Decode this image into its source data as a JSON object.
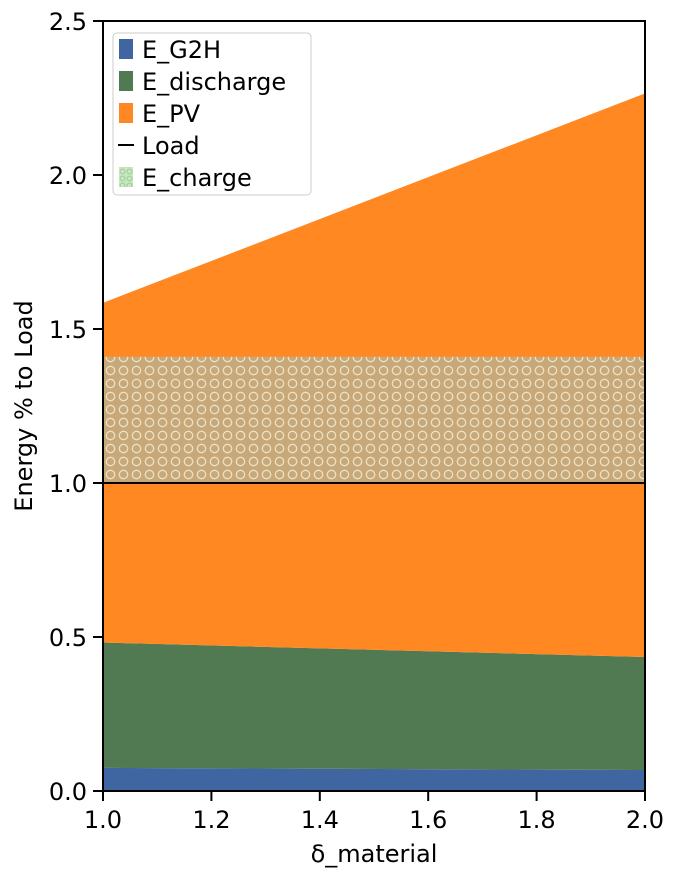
{
  "chart_data": {
    "type": "area",
    "title": "",
    "xlabel": "δ_material",
    "ylabel": "Energy % to Load",
    "xlim": [
      1.0,
      2.0
    ],
    "ylim": [
      0.0,
      2.5
    ],
    "xticks": [
      "1.0",
      "1.2",
      "1.4",
      "1.6",
      "1.8",
      "2.0"
    ],
    "yticks": [
      "0.0",
      "0.5",
      "1.0",
      "1.5",
      "2.0",
      "2.5"
    ],
    "grid": false,
    "legend_position": "top-left",
    "x": [
      1.0,
      2.0
    ],
    "series": [
      {
        "name": "E_G2H",
        "color": "#3f66a0",
        "lower": [
          0.0,
          0.0
        ],
        "upper": [
          0.075,
          0.068
        ]
      },
      {
        "name": "E_discharge",
        "color": "#527a52",
        "lower": [
          0.075,
          0.068
        ],
        "upper": [
          0.482,
          0.435
        ]
      },
      {
        "name": "E_PV",
        "color": "#ff8822",
        "lower": [
          0.482,
          0.435
        ],
        "upper": [
          1.585,
          2.265
        ]
      },
      {
        "name": "E_charge",
        "color": "#c8a878",
        "hatch": "circles",
        "lower": [
          1.0,
          1.0
        ],
        "upper": [
          1.41,
          1.41
        ]
      }
    ],
    "lines": [
      {
        "name": "Load",
        "color": "#000000",
        "values": [
          1.0,
          1.0
        ]
      }
    ],
    "legend": [
      {
        "label": "E_G2H",
        "color": "#3f66a0",
        "kind": "patch"
      },
      {
        "label": "E_discharge",
        "color": "#527a52",
        "kind": "patch"
      },
      {
        "label": "E_PV",
        "color": "#ff8822",
        "kind": "patch"
      },
      {
        "label": "Load",
        "color": "#000000",
        "kind": "line"
      },
      {
        "label": "E_charge",
        "color": "#c8e6c0",
        "kind": "hatch"
      }
    ]
  }
}
